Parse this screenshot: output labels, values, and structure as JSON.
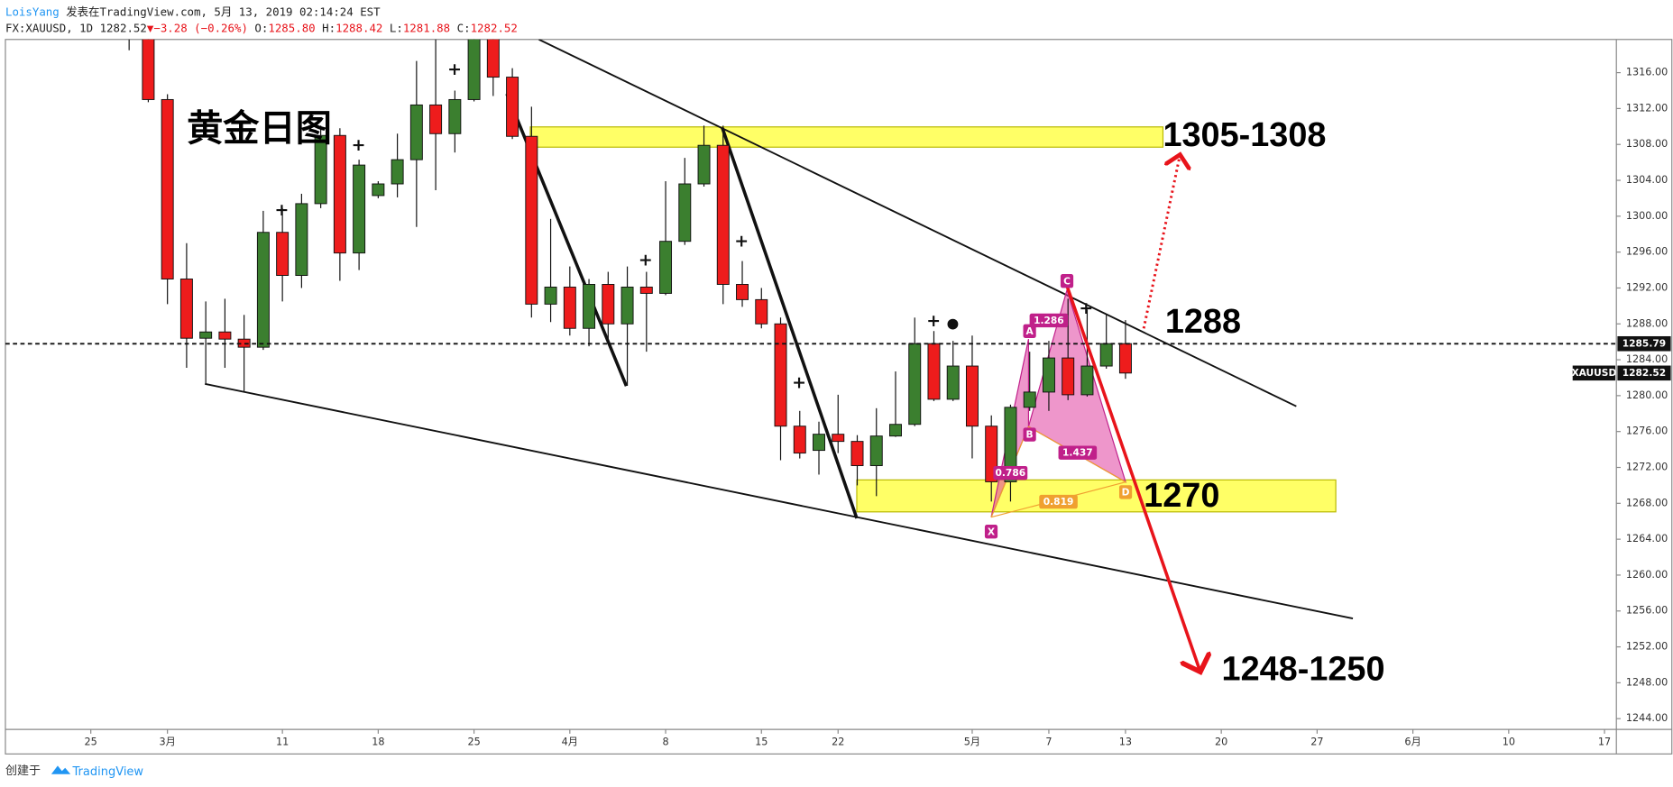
{
  "header": {
    "author": "LoisYang",
    "published": " 发表在TradingView.com, 5月 13, 2019 02:14:24 EST",
    "symbol": "FX:XAUUSD, 1D ",
    "price": "1282.52",
    "arrow": "▼",
    "change": "−3.28 (−0.26%)",
    "o_label": "O:",
    "o": "1285.80",
    "h_label": "H:",
    "h": "1288.42",
    "l_label": "L:",
    "l": "1281.88",
    "c_label": "C:",
    "c": "1282.52"
  },
  "annotations": {
    "title": "黄金日图",
    "target_up": "1305-1308",
    "resistance": "1288",
    "support": "1270",
    "target_down": "1248-1250",
    "x": "X",
    "a": "A",
    "b": "B",
    "c": "C",
    "d": "D",
    "r1": "1.286",
    "r2": "1.437",
    "r3": "0.819",
    "r4": "0.786",
    "symbol_tag": "XAUUSD"
  },
  "footer": {
    "created": "创建于",
    "brand": "TradingView"
  },
  "chart_data": {
    "type": "candlestick",
    "categories": [
      null,
      null,
      null,
      null,
      "25",
      null,
      null,
      null,
      "3月",
      null,
      null,
      null,
      null,
      null,
      "11",
      null,
      null,
      null,
      null,
      "18",
      null,
      null,
      null,
      null,
      "25",
      null,
      null,
      null,
      null,
      "4月",
      null,
      null,
      null,
      null,
      "8",
      null,
      null,
      null,
      null,
      "15",
      null,
      null,
      null,
      "22",
      null,
      null,
      null,
      null,
      null,
      null,
      "5月",
      null,
      null,
      null,
      "7",
      null,
      null,
      null,
      "13",
      null,
      null,
      null,
      null,
      "20",
      null,
      null,
      null,
      null,
      "27",
      null,
      null,
      null,
      null,
      "6月",
      null,
      null,
      null,
      null,
      "10",
      null,
      null,
      null,
      null,
      "17"
    ],
    "open": [
      null,
      null,
      null,
      null,
      null,
      null,
      1321,
      1320.5,
      1313.0,
      1293.0,
      1286.4,
      1287.1,
      1286.3,
      1285.4,
      1298.2,
      1293.4,
      1301.4,
      1309.0,
      1295.9,
      1302.3,
      1303.6,
      1306.3,
      1312.4,
      1309.2,
      1313.0,
      1320,
      1315.5,
      1308.9,
      1290.2,
      1292.1,
      1287.5,
      1292.4,
      1288.0,
      1292.1,
      1291.4,
      1297.2,
      1303.6,
      1307.9,
      1292.4,
      1290.7,
      1288.0,
      1276.6,
      1273.9,
      1275.7,
      1274.9,
      1272.2,
      1275.5,
      1276.8,
      1285.8,
      1279.6,
      1283.3,
      1276.6,
      1270.4,
      1278.7,
      1280.4,
      1284.2,
      1280.1,
      1283.3,
      1285.8,
      null,
      null,
      null,
      null,
      null,
      null,
      null,
      null,
      null,
      null,
      null,
      null,
      null,
      null,
      null,
      null,
      null,
      null,
      null,
      null,
      null,
      null,
      null,
      null,
      null
    ],
    "high": [
      null,
      null,
      null,
      null,
      null,
      null,
      1322,
      1321,
      1313.6,
      1297.0,
      1290.5,
      1290.8,
      1289.0,
      1300.6,
      1300.9,
      1302.5,
      1310.1,
      1309.8,
      1306.3,
      1303.9,
      1309.2,
      1317.3,
      1321,
      1314.0,
      1321,
      1321,
      1316.5,
      1312.2,
      1299.7,
      1294.4,
      1293.0,
      1293.8,
      1294.4,
      1293.8,
      1303.9,
      1306.5,
      1310.1,
      1310.1,
      1295.0,
      1292.0,
      1288.7,
      1278.3,
      1277.1,
      1280.1,
      1275.6,
      1278.6,
      1282.7,
      1288.7,
      1287.2,
      1286.1,
      1286.7,
      1277.8,
      1279.0,
      1284.9,
      1286.1,
      1290.8,
      1289.6,
      1289.0,
      1288.42,
      null,
      null,
      null,
      null,
      null,
      null,
      null,
      null,
      null,
      null,
      null,
      null,
      null,
      null,
      null,
      null,
      null,
      null,
      null,
      null,
      null,
      null,
      null,
      null,
      null
    ],
    "low": [
      null,
      null,
      null,
      null,
      null,
      null,
      1318.5,
      1312.7,
      1290.2,
      1283.1,
      1281.3,
      1283.1,
      1280.5,
      1285.1,
      1290.5,
      1292.0,
      1300.9,
      1292.8,
      1294.0,
      1302.0,
      1302.1,
      1298.8,
      1302.9,
      1307.1,
      1312.8,
      1313.4,
      1308.6,
      1288.7,
      1288.2,
      1286.7,
      1285.5,
      1285.8,
      1281.1,
      1284.9,
      1291.2,
      1296.8,
      1303.3,
      1290.2,
      1289.9,
      1287.5,
      1272.8,
      1273.0,
      1271.2,
      1273.6,
      1270.0,
      1268.8,
      1275.4,
      1276.6,
      1279.4,
      1279.4,
      1273.0,
      1268.2,
      1268.2,
      1278.3,
      1278.3,
      1279.5,
      1279.9,
      1283.0,
      1281.88,
      null,
      null,
      null,
      null,
      null,
      null,
      null,
      null,
      null,
      null,
      null,
      null,
      null,
      null,
      null,
      null,
      null,
      null,
      null,
      null,
      null,
      null,
      null,
      null,
      null
    ],
    "close": [
      null,
      null,
      null,
      null,
      null,
      null,
      1320.5,
      1313.0,
      1293.0,
      1286.4,
      1287.1,
      1286.3,
      1285.4,
      1298.2,
      1293.4,
      1301.4,
      1309.0,
      1295.9,
      1305.7,
      1303.6,
      1306.3,
      1312.4,
      1309.2,
      1313.0,
      1320,
      1315.5,
      1308.9,
      1290.2,
      1292.1,
      1287.5,
      1292.4,
      1288.0,
      1292.1,
      1291.4,
      1297.2,
      1303.6,
      1307.9,
      1292.4,
      1290.7,
      1288.0,
      1276.6,
      1273.6,
      1275.7,
      1274.9,
      1272.2,
      1275.5,
      1276.8,
      1285.8,
      1279.6,
      1283.3,
      1276.6,
      1270.4,
      1278.7,
      1280.4,
      1284.2,
      1280.1,
      1283.3,
      1285.8,
      1282.52,
      null,
      null,
      null,
      null,
      null,
      null,
      null,
      null,
      null,
      null,
      null,
      null,
      null,
      null,
      null,
      null,
      null,
      null,
      null,
      null,
      null,
      null,
      null,
      null,
      null
    ],
    "up_color": "#3b7f2f",
    "down_color": "#ee1c1c",
    "reference_line": 1285.79,
    "ylim": [
      1242.8,
      1319.7
    ],
    "yticks": [
      {
        "value": 1244,
        "label": "1244.00"
      },
      {
        "value": 1248,
        "label": "1248.00"
      },
      {
        "value": 1252,
        "label": "1252.00"
      },
      {
        "value": 1256,
        "label": "1256.00"
      },
      {
        "value": 1260,
        "label": "1260.00"
      },
      {
        "value": 1264,
        "label": "1264.00"
      },
      {
        "value": 1268,
        "label": "1268.00"
      },
      {
        "value": 1272,
        "label": "1272.00"
      },
      {
        "value": 1276,
        "label": "1276.00"
      },
      {
        "value": 1280,
        "label": "1280.00"
      },
      {
        "value": 1284,
        "label": "1284.00"
      },
      {
        "value": 1288,
        "label": "1288.00"
      },
      {
        "value": 1292,
        "label": "1292.00"
      },
      {
        "value": 1296,
        "label": "1296.00"
      },
      {
        "value": 1300,
        "label": "1300.00"
      },
      {
        "value": 1304,
        "label": "1304.00"
      },
      {
        "value": 1308,
        "label": "1308.00"
      },
      {
        "value": 1312,
        "label": "1312.00"
      },
      {
        "value": 1316,
        "label": "1316.00"
      }
    ],
    "grid": false
  }
}
